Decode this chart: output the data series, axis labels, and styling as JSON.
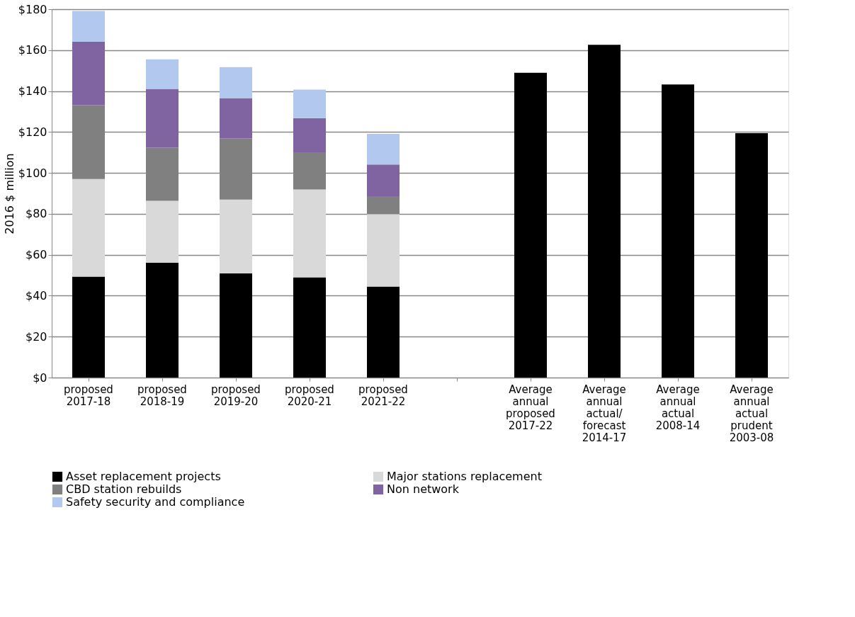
{
  "chart_data": {
    "type": "bar",
    "stacked": true,
    "ylabel": "2016 $ million",
    "categories": [
      "proposed 2017-18",
      "proposed 2018-19",
      "proposed 2019-20",
      "proposed 2020-21",
      "proposed 2021-22",
      null,
      "Average annual proposed 2017-22",
      "Average annual actual/ forecast 2014-17",
      "Average annual actual 2008-14",
      "Average annual actual prudent 2003-08"
    ],
    "series": [
      {
        "name": "Asset replacement projects",
        "color": "#000000",
        "values": [
          49.3,
          56.2,
          50.9,
          49.0,
          44.5,
          null,
          148.9,
          162.6,
          143.2,
          119.4
        ]
      },
      {
        "name": "Major stations replacement",
        "color": "#d9d9d9",
        "values": [
          47.7,
          30.2,
          36.1,
          42.9,
          35.4,
          null,
          null,
          null,
          null,
          null
        ]
      },
      {
        "name": "CBD station rebuilds",
        "color": "#808080",
        "values": [
          36.1,
          25.9,
          29.8,
          18.2,
          8.7,
          null,
          null,
          null,
          null,
          null
        ]
      },
      {
        "name": "Non network",
        "color": "#8064a2",
        "values": [
          31.0,
          28.8,
          19.8,
          16.7,
          15.5,
          null,
          null,
          null,
          null,
          null
        ]
      },
      {
        "name": "Safety security and compliance",
        "color": "#b3c8ee",
        "values": [
          15.0,
          14.4,
          15.1,
          13.9,
          15.0,
          null,
          null,
          null,
          null,
          null
        ]
      }
    ],
    "ylim": [
      0,
      180
    ],
    "yticks": [
      {
        "value": 0,
        "label": "$0"
      },
      {
        "value": 20,
        "label": "$20"
      },
      {
        "value": 40,
        "label": "$40"
      },
      {
        "value": 60,
        "label": "$60"
      },
      {
        "value": 80,
        "label": "$80"
      },
      {
        "value": 100,
        "label": "$100"
      },
      {
        "value": 120,
        "label": "$120"
      },
      {
        "value": 140,
        "label": "$140"
      },
      {
        "value": 160,
        "label": "$160"
      },
      {
        "value": 180,
        "label": "$180"
      }
    ],
    "grid": "y",
    "legend": "bottom"
  }
}
